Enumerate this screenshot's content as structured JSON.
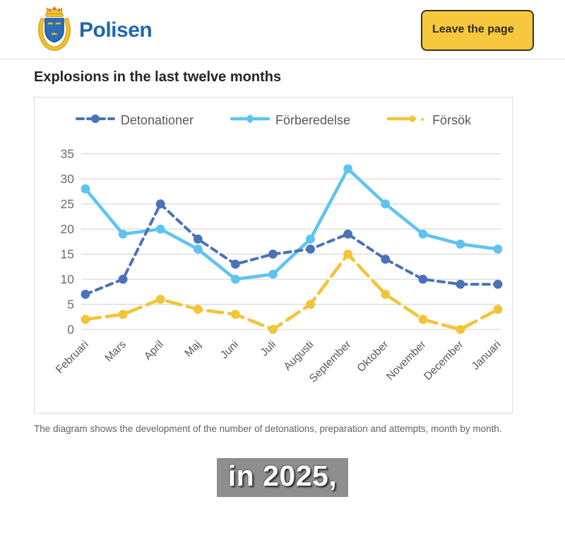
{
  "header": {
    "brand": "Polisen",
    "leave_button": "Leave the page"
  },
  "page": {
    "title": "Explosions in the last twelve months",
    "caption": "The diagram shows the development of the number of detonations, preparation and attempts, month by month.",
    "subtitle_overlay": "in 2025,"
  },
  "colors": {
    "brand_blue": "#1f67af",
    "button_yellow": "#f7c83d",
    "detonationer": "#4a72b8",
    "forberedelse": "#5ec4ef",
    "forsok": "#f2c437",
    "gridline": "#d9d9d9",
    "axis_text": "#6b6b6b"
  },
  "icons": {
    "logo": "polisen-crest-icon"
  },
  "chart_data": {
    "type": "line",
    "categories": [
      "Februari",
      "Mars",
      "April",
      "Maj",
      "Juni",
      "Juli",
      "Augusti",
      "September",
      "Oktober",
      "November",
      "December",
      "Januari"
    ],
    "series": [
      {
        "name": "Detonationer",
        "color": "#4a72b8",
        "style": "dashed",
        "marker": "circle",
        "values": [
          7,
          10,
          25,
          18,
          13,
          15,
          16,
          19,
          14,
          10,
          9,
          9
        ]
      },
      {
        "name": "Förberedelse",
        "color": "#5ec4ef",
        "style": "solid",
        "marker": "circle",
        "values": [
          28,
          19,
          20,
          16,
          10,
          11,
          18,
          32,
          25,
          19,
          17,
          16
        ]
      },
      {
        "name": "Försök",
        "color": "#f2c437",
        "style": "long-dash",
        "marker": "circle",
        "values": [
          2,
          3,
          6,
          4,
          3,
          0,
          5,
          15,
          7,
          2,
          0,
          4
        ]
      }
    ],
    "title": "",
    "xlabel": "",
    "ylabel": "",
    "ylim": [
      0,
      35
    ],
    "ytick_step": 5,
    "grid": true,
    "legend_position": "top"
  }
}
